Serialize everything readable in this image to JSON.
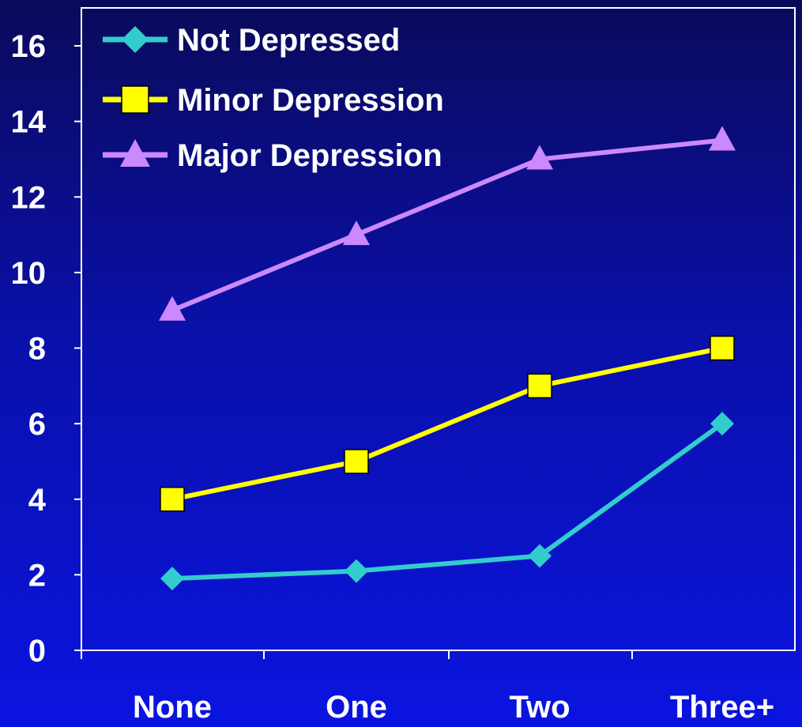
{
  "chart_data": {
    "type": "line",
    "categories": [
      "None",
      "One",
      "Two",
      "Three+"
    ],
    "ylim": [
      0,
      16
    ],
    "yticks": [
      "0",
      "2",
      "4",
      "6",
      "8",
      "10",
      "12",
      "14",
      "16"
    ],
    "grid": false,
    "legend_position": "top-left",
    "series": [
      {
        "name": "Not Depressed",
        "values": [
          1.9,
          2.1,
          2.5,
          6.0
        ],
        "color": "#33cccc",
        "marker": "diamond"
      },
      {
        "name": "Minor Depression",
        "values": [
          4.0,
          5.0,
          7.0,
          8.0
        ],
        "color": "#ffff00",
        "marker": "square"
      },
      {
        "name": "Major Depression",
        "values": [
          9.0,
          11.0,
          13.0,
          13.5
        ],
        "color": "#cc88ff",
        "marker": "triangle"
      }
    ]
  }
}
